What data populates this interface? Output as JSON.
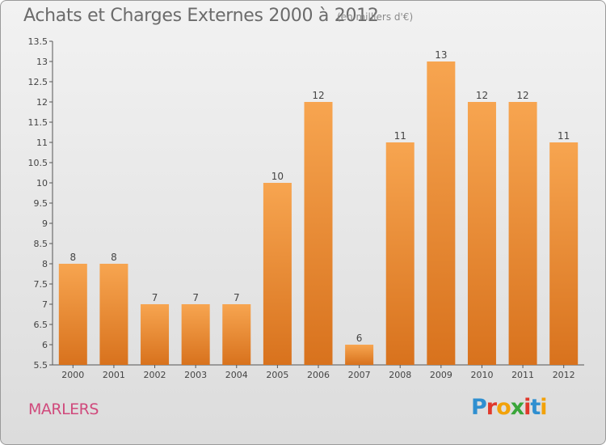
{
  "header": {
    "title": "Achats et Charges Externes 2000 à 2012",
    "subtitle": "(en milliers d'€)"
  },
  "footer": {
    "commune": "MARLERS",
    "logo_text": "Proxiti"
  },
  "colors": {
    "bar_light": "#f7a550",
    "bar_dark": "#d8721d",
    "title": "#6b6b6b",
    "commune": "#d04a7c"
  },
  "chart_data": {
    "type": "bar",
    "title": "Achats et Charges Externes 2000 à 2012",
    "subtitle": "(en milliers d'€)",
    "xlabel": "",
    "ylabel": "",
    "categories": [
      "2000",
      "2001",
      "2002",
      "2003",
      "2004",
      "2005",
      "2006",
      "2007",
      "2008",
      "2009",
      "2010",
      "2011",
      "2012"
    ],
    "values": [
      8,
      8,
      7,
      7,
      7,
      10,
      12,
      6,
      11,
      13,
      12,
      12,
      11
    ],
    "ylim": [
      5.5,
      13.5
    ],
    "yticks": [
      "5.5",
      "6",
      "6.5",
      "7",
      "7.5",
      "8",
      "8.5",
      "9",
      "9.5",
      "10",
      "10.5",
      "11",
      "11.5",
      "12",
      "12.5",
      "13",
      "13.5"
    ],
    "grid": false,
    "legend": "none"
  }
}
